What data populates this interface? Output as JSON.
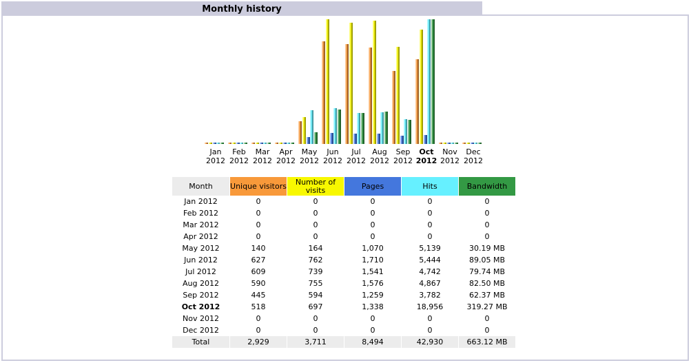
{
  "section": {
    "title": "Monthly history"
  },
  "colors": {
    "unique": "#f8993a",
    "visits": "#f8f800",
    "pages": "#4477dd",
    "hits": "#66f0ff",
    "bandwidth": "#339944",
    "header_grey": "#ececec",
    "title_bar": "#ccccdd"
  },
  "chart_data": {
    "type": "bar",
    "categories": [
      "Jan 2012",
      "Feb 2012",
      "Mar 2012",
      "Apr 2012",
      "May 2012",
      "Jun 2012",
      "Jul 2012",
      "Aug 2012",
      "Sep 2012",
      "Oct 2012",
      "Nov 2012",
      "Dec 2012"
    ],
    "month_labels": [
      "Jan",
      "Feb",
      "Mar",
      "Apr",
      "May",
      "Jun",
      "Jul",
      "Aug",
      "Sep",
      "Oct",
      "Nov",
      "Dec"
    ],
    "year_label": "2012",
    "highlight_index": 9,
    "series": [
      {
        "name": "Unique visitors",
        "color": "#f8993a",
        "values": [
          0,
          0,
          0,
          0,
          140,
          627,
          609,
          590,
          445,
          518,
          0,
          0
        ]
      },
      {
        "name": "Number of visits",
        "color": "#f8f800",
        "values": [
          0,
          0,
          0,
          0,
          164,
          762,
          739,
          755,
          594,
          697,
          0,
          0
        ]
      },
      {
        "name": "Pages",
        "color": "#4477dd",
        "values": [
          0,
          0,
          0,
          0,
          1070,
          1710,
          1541,
          1576,
          1259,
          1338,
          0,
          0
        ]
      },
      {
        "name": "Hits",
        "color": "#66f0ff",
        "values": [
          0,
          0,
          0,
          0,
          5139,
          5444,
          4742,
          4867,
          3782,
          18956,
          0,
          0
        ]
      },
      {
        "name": "Bandwidth",
        "color": "#339944",
        "values_mb": [
          0,
          0,
          0,
          0,
          30.19,
          89.05,
          79.74,
          82.5,
          62.37,
          319.27,
          0,
          0
        ]
      }
    ]
  },
  "table": {
    "headers": {
      "month": "Month",
      "unique": "Unique visitors",
      "visits": "Number of visits",
      "pages": "Pages",
      "hits": "Hits",
      "bandwidth": "Bandwidth"
    },
    "rows": [
      {
        "month": "Jan 2012",
        "unique": "0",
        "visits": "0",
        "pages": "0",
        "hits": "0",
        "bandwidth": "0"
      },
      {
        "month": "Feb 2012",
        "unique": "0",
        "visits": "0",
        "pages": "0",
        "hits": "0",
        "bandwidth": "0"
      },
      {
        "month": "Mar 2012",
        "unique": "0",
        "visits": "0",
        "pages": "0",
        "hits": "0",
        "bandwidth": "0"
      },
      {
        "month": "Apr 2012",
        "unique": "0",
        "visits": "0",
        "pages": "0",
        "hits": "0",
        "bandwidth": "0"
      },
      {
        "month": "May 2012",
        "unique": "140",
        "visits": "164",
        "pages": "1,070",
        "hits": "5,139",
        "bandwidth": "30.19 MB"
      },
      {
        "month": "Jun 2012",
        "unique": "627",
        "visits": "762",
        "pages": "1,710",
        "hits": "5,444",
        "bandwidth": "89.05 MB"
      },
      {
        "month": "Jul 2012",
        "unique": "609",
        "visits": "739",
        "pages": "1,541",
        "hits": "4,742",
        "bandwidth": "79.74 MB"
      },
      {
        "month": "Aug 2012",
        "unique": "590",
        "visits": "755",
        "pages": "1,576",
        "hits": "4,867",
        "bandwidth": "82.50 MB"
      },
      {
        "month": "Sep 2012",
        "unique": "445",
        "visits": "594",
        "pages": "1,259",
        "hits": "3,782",
        "bandwidth": "62.37 MB"
      },
      {
        "month": "Oct 2012",
        "unique": "518",
        "visits": "697",
        "pages": "1,338",
        "hits": "18,956",
        "bandwidth": "319.27 MB"
      },
      {
        "month": "Nov 2012",
        "unique": "0",
        "visits": "0",
        "pages": "0",
        "hits": "0",
        "bandwidth": "0"
      },
      {
        "month": "Dec 2012",
        "unique": "0",
        "visits": "0",
        "pages": "0",
        "hits": "0",
        "bandwidth": "0"
      }
    ],
    "total": {
      "month": "Total",
      "unique": "2,929",
      "visits": "3,711",
      "pages": "8,494",
      "hits": "42,930",
      "bandwidth": "663.12 MB"
    }
  }
}
